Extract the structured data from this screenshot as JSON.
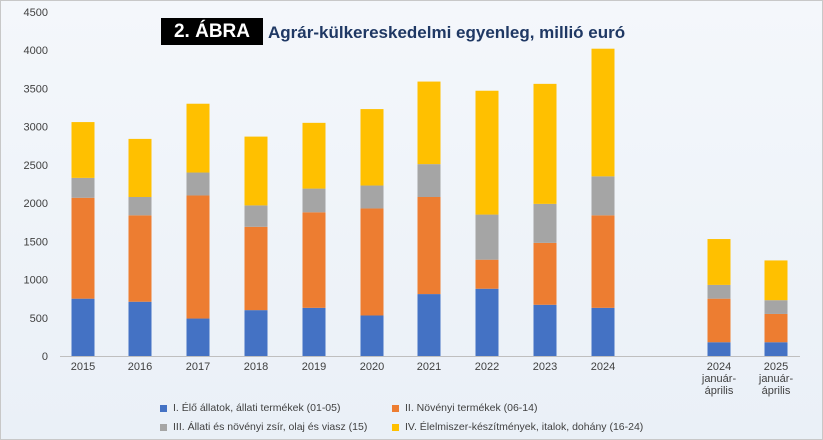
{
  "header": {
    "badge": "2. ÁBRA",
    "title": "Agrár-külkereskedelmi egyenleg, millió euró"
  },
  "colors": {
    "s1": "#4472c4",
    "s2": "#ed7d31",
    "s3": "#a5a5a5",
    "s4": "#ffc000"
  },
  "chart_data": {
    "type": "bar",
    "stacked": true,
    "categories": [
      "2015",
      "2016",
      "2017",
      "2018",
      "2019",
      "2020",
      "2021",
      "2022",
      "2023",
      "2024",
      "2024 január-április",
      "2025 január-április"
    ],
    "category_lines": [
      [
        "2015"
      ],
      [
        "2016"
      ],
      [
        "2017"
      ],
      [
        "2018"
      ],
      [
        "2019"
      ],
      [
        "2020"
      ],
      [
        "2021"
      ],
      [
        "2022"
      ],
      [
        "2023"
      ],
      [
        "2024"
      ],
      [
        "2024",
        "január-",
        "április"
      ],
      [
        "2025",
        "január-",
        "április"
      ]
    ],
    "series": [
      {
        "name": "I.   Élő állatok, állati termékek  (01-05)",
        "values": [
          750,
          710,
          490,
          600,
          630,
          530,
          810,
          880,
          670,
          630,
          180,
          180
        ]
      },
      {
        "name": "II.   Növényi termékek  (06-14)",
        "values": [
          1320,
          1130,
          1610,
          1090,
          1250,
          1400,
          1270,
          380,
          810,
          1210,
          570,
          370
        ]
      },
      {
        "name": "III.   Állati és növényi zsír, olaj és viasz  (15)",
        "values": [
          260,
          240,
          300,
          280,
          310,
          300,
          430,
          590,
          510,
          510,
          180,
          180
        ]
      },
      {
        "name": "IV.   Élelmiszer-készítmények, italok, dohány  (16-24)",
        "values": [
          730,
          760,
          900,
          900,
          860,
          1000,
          1080,
          1620,
          1570,
          1670,
          600,
          520
        ]
      }
    ],
    "ylim": [
      0,
      4500
    ],
    "yticks": [
      "0",
      "500",
      "1000",
      "1500",
      "2000",
      "2500",
      "3000",
      "3500",
      "4000",
      "4500"
    ],
    "xlabel": "",
    "ylabel": "",
    "grid": false,
    "legend_position": "bottom"
  }
}
